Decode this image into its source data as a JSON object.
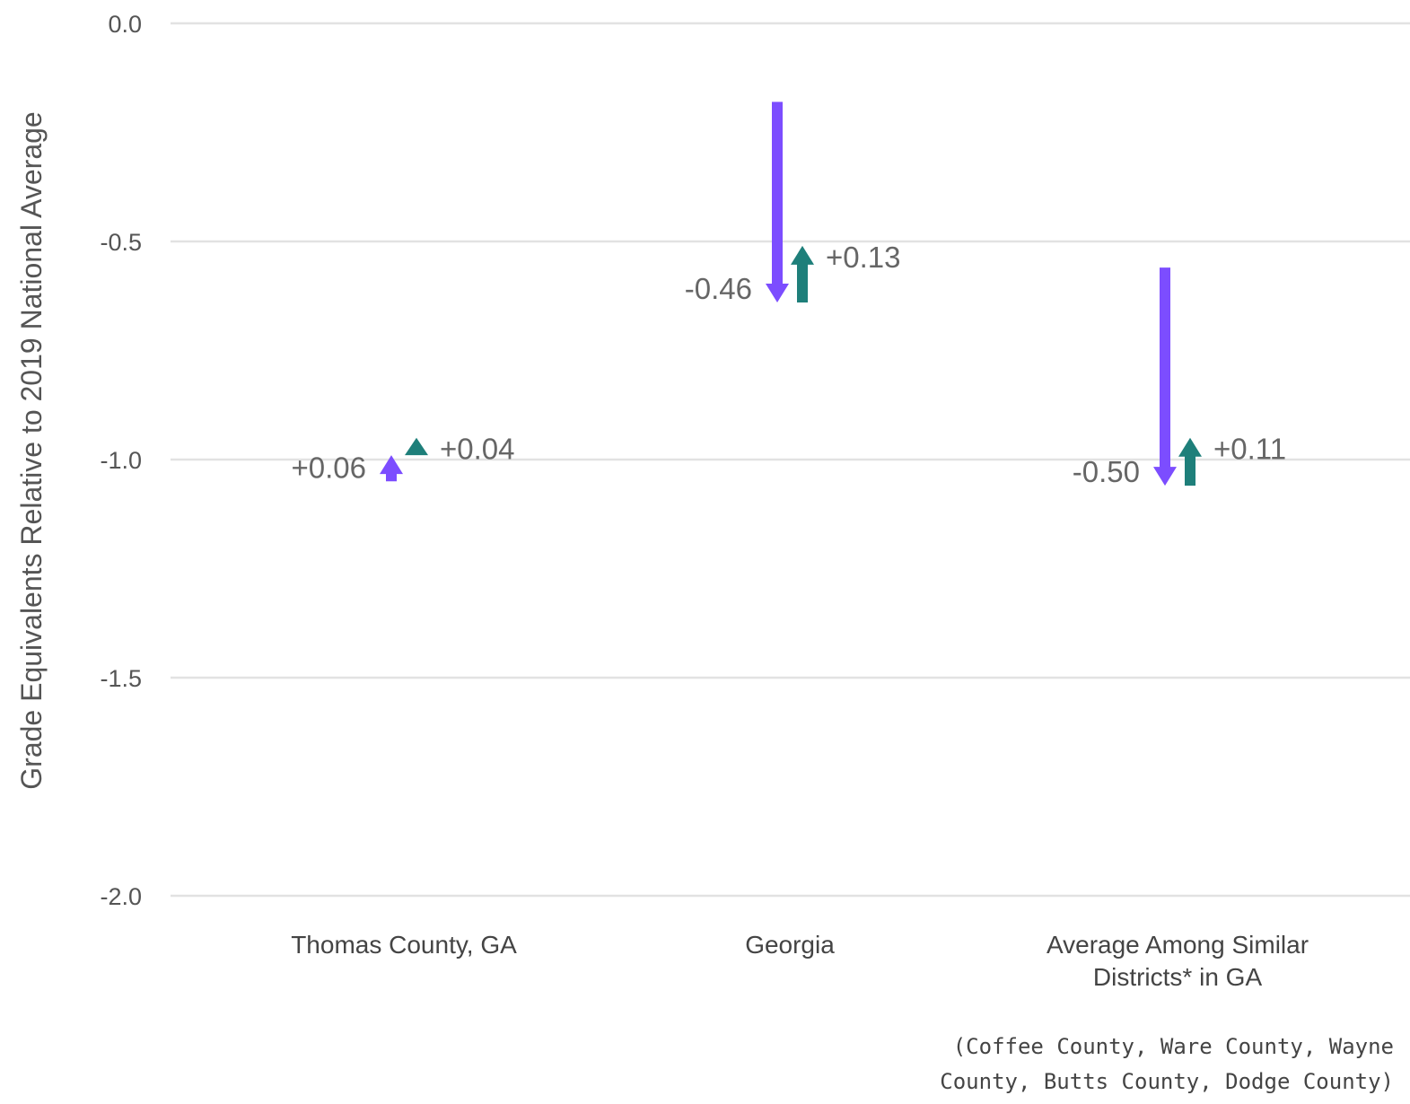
{
  "chart_data": {
    "type": "arrow",
    "ylabel": "Grade Equivalents Relative to 2019 National Average",
    "ylim": [
      -2.0,
      0.0
    ],
    "yticks": [
      0.0,
      -0.5,
      -1.0,
      -1.5,
      -2.0
    ],
    "ytick_labels": [
      "0.0",
      "-0.5",
      "-1.0",
      "-1.5",
      "-2.0"
    ],
    "grid": true,
    "categories": [
      {
        "lines": [
          "Thomas County, GA"
        ]
      },
      {
        "lines": [
          "Georgia"
        ]
      },
      {
        "lines": [
          "Average Among Similar",
          "Districts* in GA"
        ]
      }
    ],
    "footnote_lines": [
      "(Coffee County, Ware County, Wayne",
      "County, Butts County, Dodge County)"
    ],
    "colors": {
      "first_change": "#7c4dff",
      "second_change": "#1e7f7a"
    },
    "series": [
      {
        "values": [
          {
            "start": -1.05,
            "end": -0.99,
            "label": "+0.06"
          },
          {
            "start": -0.18,
            "end": -0.64,
            "label": "-0.46"
          },
          {
            "start": -0.56,
            "end": -1.06,
            "label": "-0.50"
          }
        ]
      },
      {
        "values": [
          {
            "start": -0.99,
            "end": -0.95,
            "label": "+0.04"
          },
          {
            "start": -0.64,
            "end": -0.51,
            "label": "+0.13"
          },
          {
            "start": -1.06,
            "end": -0.95,
            "label": "+0.11"
          }
        ]
      }
    ]
  }
}
